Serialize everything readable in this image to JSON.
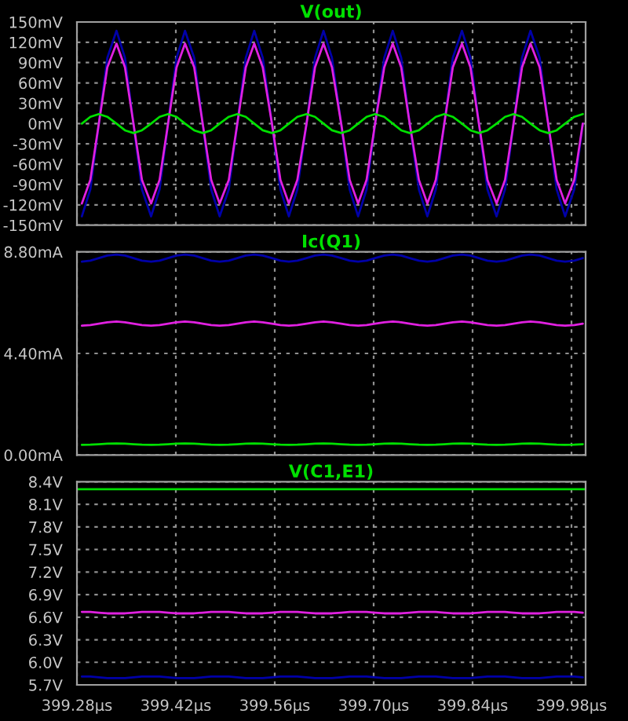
{
  "chart_data": [
    {
      "type": "line",
      "title": "V(out)",
      "marker": "none",
      "line_style": "solid",
      "grid": true,
      "tick_labels": "y",
      "x": [
        399.287,
        399.299,
        399.311,
        399.323,
        399.336,
        399.348,
        399.36,
        399.372,
        399.385,
        399.397,
        399.409,
        399.421,
        399.433,
        399.446,
        399.458,
        399.47,
        399.482,
        399.495,
        399.507,
        399.519,
        399.531,
        399.543,
        399.556,
        399.568,
        399.58,
        399.592,
        399.605,
        399.617,
        399.629,
        399.641,
        399.654,
        399.666,
        399.678,
        399.69,
        399.702,
        399.715,
        399.727,
        399.739,
        399.751,
        399.764,
        399.776,
        399.788,
        399.8,
        399.812,
        399.825,
        399.837,
        399.849,
        399.861,
        399.874,
        399.886,
        399.898,
        399.91,
        399.922,
        399.935,
        399.947,
        399.959,
        399.971,
        399.984,
        399.996
      ],
      "xlim": [
        399.28,
        400.0
      ],
      "xticks": [
        399.28,
        399.42,
        399.56,
        399.7,
        399.84,
        399.98
      ],
      "ylim": [
        -150,
        150
      ],
      "yticks": [
        {
          "value": -150,
          "label": "-150mV"
        },
        {
          "value": -120,
          "label": "-120mV"
        },
        {
          "value": -90,
          "label": "-90mV"
        },
        {
          "value": -60,
          "label": "-60mV"
        },
        {
          "value": -30,
          "label": "-30mV"
        },
        {
          "value": 0,
          "label": "0mV"
        },
        {
          "value": 30,
          "label": "30mV"
        },
        {
          "value": 60,
          "label": "60mV"
        },
        {
          "value": 90,
          "label": "90mV"
        },
        {
          "value": 120,
          "label": "120mV"
        },
        {
          "value": 150,
          "label": "150mV"
        }
      ],
      "series": [
        {
          "color": "#0000a8",
          "values": [
            -137,
            -97,
            0,
            97,
            137,
            97,
            0,
            -97,
            -137,
            -97,
            0,
            97,
            137,
            97,
            0,
            -97,
            -137,
            -97,
            0,
            97,
            137,
            97,
            0,
            -97,
            -137,
            -97,
            0,
            97,
            137,
            97,
            0,
            -97,
            -137,
            -97,
            0,
            97,
            137,
            97,
            0,
            -97,
            -137,
            -97,
            0,
            97,
            137,
            97,
            0,
            -97,
            -137,
            -97,
            0,
            97,
            137,
            97,
            0,
            -97,
            -137,
            -97,
            0
          ]
        },
        {
          "color": "#e020e0",
          "values": [
            -118,
            -83,
            0,
            83,
            118,
            83,
            0,
            -83,
            -118,
            -83,
            0,
            83,
            118,
            83,
            0,
            -83,
            -118,
            -83,
            0,
            83,
            118,
            83,
            0,
            -83,
            -118,
            -83,
            0,
            83,
            118,
            83,
            0,
            -83,
            -118,
            -83,
            0,
            83,
            118,
            83,
            0,
            -83,
            -118,
            -83,
            0,
            83,
            118,
            83,
            0,
            -83,
            -118,
            -83,
            0,
            83,
            118,
            83,
            0,
            -83,
            -118,
            -83,
            0
          ]
        },
        {
          "color": "#00e000",
          "values": [
            0,
            10,
            14,
            10,
            0,
            -10,
            -14,
            -10,
            0,
            10,
            14,
            10,
            0,
            -10,
            -14,
            -10,
            0,
            10,
            14,
            10,
            0,
            -10,
            -14,
            -10,
            0,
            10,
            14,
            10,
            0,
            -10,
            -14,
            -10,
            0,
            10,
            14,
            10,
            0,
            -10,
            -14,
            -10,
            0,
            10,
            14,
            10,
            0,
            -10,
            -14,
            -10,
            0,
            10,
            14,
            10,
            0,
            -10,
            -14,
            -10,
            0,
            10,
            14
          ]
        }
      ]
    },
    {
      "type": "line",
      "title": "Ic(Q1)",
      "marker": "none",
      "line_style": "solid",
      "grid": true,
      "tick_labels": "y",
      "x": [
        399.287,
        399.299,
        399.311,
        399.323,
        399.336,
        399.348,
        399.36,
        399.372,
        399.385,
        399.397,
        399.409,
        399.421,
        399.433,
        399.446,
        399.458,
        399.47,
        399.482,
        399.495,
        399.507,
        399.519,
        399.531,
        399.543,
        399.556,
        399.568,
        399.58,
        399.592,
        399.605,
        399.617,
        399.629,
        399.641,
        399.654,
        399.666,
        399.678,
        399.69,
        399.702,
        399.715,
        399.727,
        399.739,
        399.751,
        399.764,
        399.776,
        399.788,
        399.8,
        399.812,
        399.825,
        399.837,
        399.849,
        399.861,
        399.874,
        399.886,
        399.898,
        399.91,
        399.922,
        399.935,
        399.947,
        399.959,
        399.971,
        399.984,
        399.996
      ],
      "xlim": [
        399.28,
        400.0
      ],
      "xticks": [
        399.28,
        399.42,
        399.56,
        399.7,
        399.84,
        399.98
      ],
      "ylim": [
        0,
        8.8
      ],
      "yticks": [
        {
          "value": 0,
          "label": "0.00mA"
        },
        {
          "value": 4.4,
          "label": "4.40mA"
        },
        {
          "value": 8.8,
          "label": "8.80mA"
        }
      ],
      "series": [
        {
          "color": "#0000a8",
          "values": [
            8.38,
            8.42,
            8.53,
            8.64,
            8.68,
            8.64,
            8.53,
            8.42,
            8.38,
            8.42,
            8.53,
            8.64,
            8.68,
            8.64,
            8.53,
            8.42,
            8.38,
            8.42,
            8.53,
            8.64,
            8.68,
            8.64,
            8.53,
            8.42,
            8.38,
            8.42,
            8.53,
            8.64,
            8.68,
            8.64,
            8.53,
            8.42,
            8.38,
            8.42,
            8.53,
            8.64,
            8.68,
            8.64,
            8.53,
            8.42,
            8.38,
            8.42,
            8.53,
            8.64,
            8.68,
            8.64,
            8.53,
            8.42,
            8.38,
            8.42,
            8.53,
            8.64,
            8.68,
            8.64,
            8.53,
            8.42,
            8.38,
            8.42,
            8.53
          ]
        },
        {
          "color": "#e020e0",
          "values": [
            5.6,
            5.63,
            5.69,
            5.75,
            5.78,
            5.75,
            5.69,
            5.63,
            5.6,
            5.63,
            5.69,
            5.75,
            5.78,
            5.75,
            5.69,
            5.63,
            5.6,
            5.63,
            5.69,
            5.75,
            5.78,
            5.75,
            5.69,
            5.63,
            5.6,
            5.63,
            5.69,
            5.75,
            5.78,
            5.75,
            5.69,
            5.63,
            5.6,
            5.63,
            5.69,
            5.75,
            5.78,
            5.75,
            5.69,
            5.63,
            5.6,
            5.63,
            5.69,
            5.75,
            5.78,
            5.75,
            5.69,
            5.63,
            5.6,
            5.63,
            5.69,
            5.75,
            5.78,
            5.75,
            5.69,
            5.63,
            5.6,
            5.63,
            5.69
          ]
        },
        {
          "color": "#00e000",
          "values": [
            0.44,
            0.45,
            0.47,
            0.49,
            0.5,
            0.49,
            0.47,
            0.45,
            0.44,
            0.45,
            0.47,
            0.49,
            0.5,
            0.49,
            0.47,
            0.45,
            0.44,
            0.45,
            0.47,
            0.49,
            0.5,
            0.49,
            0.47,
            0.45,
            0.44,
            0.45,
            0.47,
            0.49,
            0.5,
            0.49,
            0.47,
            0.45,
            0.44,
            0.45,
            0.47,
            0.49,
            0.5,
            0.49,
            0.47,
            0.45,
            0.44,
            0.45,
            0.47,
            0.49,
            0.5,
            0.49,
            0.47,
            0.45,
            0.44,
            0.45,
            0.47,
            0.49,
            0.5,
            0.49,
            0.47,
            0.45,
            0.44,
            0.45,
            0.47
          ]
        }
      ]
    },
    {
      "type": "line",
      "title": "V(C1,E1)",
      "marker": "none",
      "line_style": "solid",
      "grid": true,
      "x": [
        399.287,
        399.299,
        399.311,
        399.323,
        399.336,
        399.348,
        399.36,
        399.372,
        399.385,
        399.397,
        399.409,
        399.421,
        399.433,
        399.446,
        399.458,
        399.47,
        399.482,
        399.495,
        399.507,
        399.519,
        399.531,
        399.543,
        399.556,
        399.568,
        399.58,
        399.592,
        399.605,
        399.617,
        399.629,
        399.641,
        399.654,
        399.666,
        399.678,
        399.69,
        399.702,
        399.715,
        399.727,
        399.739,
        399.751,
        399.764,
        399.776,
        399.788,
        399.8,
        399.812,
        399.825,
        399.837,
        399.849,
        399.861,
        399.874,
        399.886,
        399.898,
        399.91,
        399.922,
        399.935,
        399.947,
        399.959,
        399.971,
        399.984,
        399.996
      ],
      "xlim": [
        399.28,
        400.0
      ],
      "xticks": [
        {
          "value": 399.28,
          "label": "399.28µs"
        },
        {
          "value": 399.42,
          "label": "399.42µs"
        },
        {
          "value": 399.56,
          "label": "399.56µs"
        },
        {
          "value": 399.7,
          "label": "399.70µs"
        },
        {
          "value": 399.84,
          "label": "399.84µs"
        },
        {
          "value": 399.98,
          "label": "399.98µs"
        }
      ],
      "ylim": [
        5.7,
        8.4
      ],
      "yticks": [
        {
          "value": 5.7,
          "label": "5.7V"
        },
        {
          "value": 6.0,
          "label": "6.0V"
        },
        {
          "value": 6.3,
          "label": "6.3V"
        },
        {
          "value": 6.6,
          "label": "6.6V"
        },
        {
          "value": 6.9,
          "label": "6.9V"
        },
        {
          "value": 7.2,
          "label": "7.2V"
        },
        {
          "value": 7.5,
          "label": "7.5V"
        },
        {
          "value": 7.8,
          "label": "7.8V"
        },
        {
          "value": 8.1,
          "label": "8.1V"
        },
        {
          "value": 8.4,
          "label": "8.4V"
        }
      ],
      "series": [
        {
          "color": "#0000a8",
          "values": [
            5.81,
            5.81,
            5.8,
            5.79,
            5.79,
            5.79,
            5.8,
            5.81,
            5.81,
            5.81,
            5.8,
            5.79,
            5.79,
            5.79,
            5.8,
            5.81,
            5.81,
            5.81,
            5.8,
            5.79,
            5.79,
            5.79,
            5.8,
            5.81,
            5.81,
            5.81,
            5.8,
            5.79,
            5.79,
            5.79,
            5.8,
            5.81,
            5.81,
            5.81,
            5.8,
            5.79,
            5.79,
            5.79,
            5.8,
            5.81,
            5.81,
            5.81,
            5.8,
            5.79,
            5.79,
            5.79,
            5.8,
            5.81,
            5.81,
            5.81,
            5.8,
            5.79,
            5.79,
            5.79,
            5.8,
            5.81,
            5.81,
            5.81,
            5.8
          ]
        },
        {
          "color": "#e020e0",
          "values": [
            6.67,
            6.67,
            6.66,
            6.65,
            6.65,
            6.65,
            6.66,
            6.67,
            6.67,
            6.67,
            6.66,
            6.65,
            6.65,
            6.65,
            6.66,
            6.67,
            6.67,
            6.67,
            6.66,
            6.65,
            6.65,
            6.65,
            6.66,
            6.67,
            6.67,
            6.67,
            6.66,
            6.65,
            6.65,
            6.65,
            6.66,
            6.67,
            6.67,
            6.67,
            6.66,
            6.65,
            6.65,
            6.65,
            6.66,
            6.67,
            6.67,
            6.67,
            6.66,
            6.65,
            6.65,
            6.65,
            6.66,
            6.67,
            6.67,
            6.67,
            6.66,
            6.65,
            6.65,
            6.65,
            6.66,
            6.67,
            6.67,
            6.67,
            6.66
          ]
        },
        {
          "color": "#00e000",
          "x": [
            399.28,
            400.0
          ],
          "values": [
            8.3,
            8.3
          ]
        }
      ]
    }
  ]
}
